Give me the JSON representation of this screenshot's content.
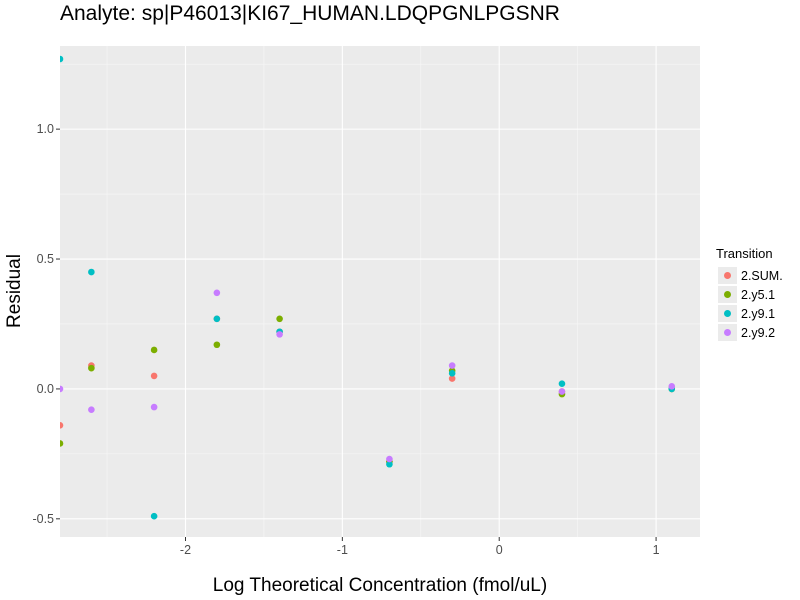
{
  "chart_data": {
    "type": "scatter",
    "title": "Analyte: sp|P46013|KI67_HUMAN.LDQPGNLPGSNR",
    "xlabel": "Log Theoretical Concentration (fmol/uL)",
    "ylabel": "Residual",
    "xlim": [
      -2.8,
      1.28
    ],
    "ylim": [
      -0.57,
      1.32
    ],
    "x_ticks": [
      -2,
      -1,
      0,
      1
    ],
    "x_tick_labels": [
      "-2",
      "-1",
      "0",
      "1"
    ],
    "y_ticks": [
      -0.5,
      0.0,
      0.5,
      1.0
    ],
    "y_tick_labels": [
      "-0.5",
      "0.0",
      "0.5",
      "1.0"
    ],
    "grid": true,
    "legend_position": "right",
    "legend_title": "Transition",
    "series": [
      {
        "name": "2.SUM.",
        "color": "#F8766D",
        "points": [
          {
            "x": -2.8,
            "y": -0.14
          },
          {
            "x": -2.6,
            "y": 0.09
          },
          {
            "x": -2.2,
            "y": 0.05
          },
          {
            "x": -1.8,
            "y": 0.27
          },
          {
            "x": -1.4,
            "y": 0.22
          },
          {
            "x": -0.7,
            "y": -0.28
          },
          {
            "x": -0.3,
            "y": 0.04
          },
          {
            "x": 0.4,
            "y": -0.01
          },
          {
            "x": 1.1,
            "y": 0.0
          }
        ]
      },
      {
        "name": "2.y5.1",
        "color": "#7CAE00",
        "points": [
          {
            "x": -2.8,
            "y": -0.21
          },
          {
            "x": -2.6,
            "y": 0.08
          },
          {
            "x": -2.2,
            "y": 0.15
          },
          {
            "x": -1.8,
            "y": 0.17
          },
          {
            "x": -1.4,
            "y": 0.27
          },
          {
            "x": -0.7,
            "y": -0.28
          },
          {
            "x": -0.3,
            "y": 0.07
          },
          {
            "x": 0.4,
            "y": -0.02
          },
          {
            "x": 1.1,
            "y": 0.0
          }
        ]
      },
      {
        "name": "2.y9.1",
        "color": "#00BFC4",
        "points": [
          {
            "x": -2.8,
            "y": 1.27
          },
          {
            "x": -2.6,
            "y": 0.45
          },
          {
            "x": -2.2,
            "y": -0.49
          },
          {
            "x": -1.8,
            "y": 0.27
          },
          {
            "x": -1.4,
            "y": 0.22
          },
          {
            "x": -0.7,
            "y": -0.29
          },
          {
            "x": -0.3,
            "y": 0.06
          },
          {
            "x": 0.4,
            "y": 0.02
          },
          {
            "x": 1.1,
            "y": -0.0
          }
        ]
      },
      {
        "name": "2.y9.2",
        "color": "#C77CFF",
        "points": [
          {
            "x": -2.8,
            "y": 0.0
          },
          {
            "x": -2.6,
            "y": -0.08
          },
          {
            "x": -2.2,
            "y": -0.07
          },
          {
            "x": -1.8,
            "y": 0.37
          },
          {
            "x": -1.4,
            "y": 0.21
          },
          {
            "x": -0.7,
            "y": -0.27
          },
          {
            "x": -0.3,
            "y": 0.09
          },
          {
            "x": 0.4,
            "y": -0.01
          },
          {
            "x": 1.1,
            "y": 0.01
          }
        ]
      }
    ]
  }
}
